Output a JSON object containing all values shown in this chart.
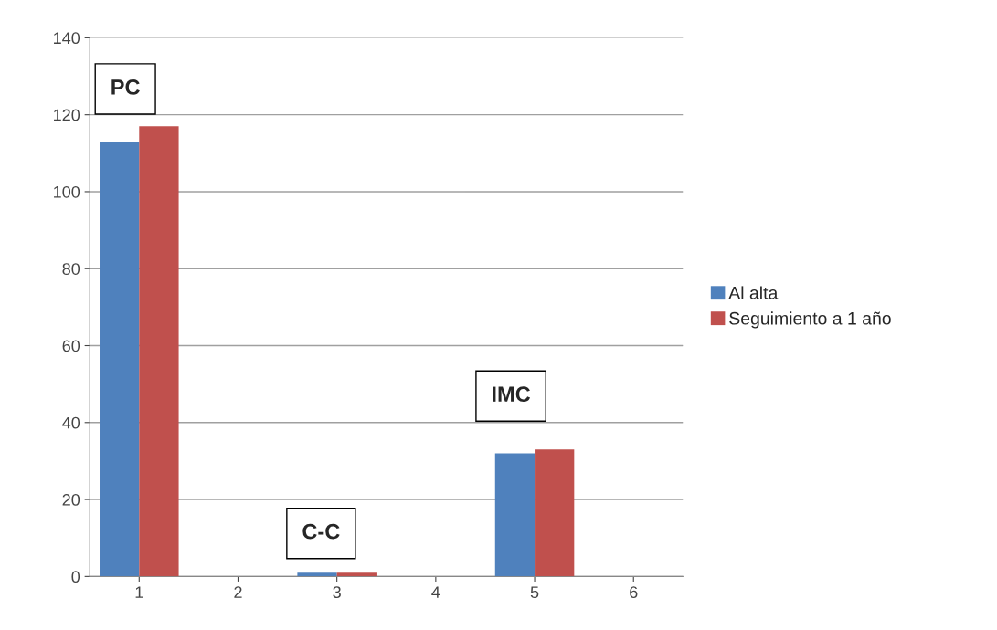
{
  "chart_data": {
    "type": "bar",
    "categories": [
      "1",
      "2",
      "3",
      "4",
      "5",
      "6"
    ],
    "series": [
      {
        "name": "Al alta",
        "color": "#4f81bd",
        "values": [
          113,
          null,
          1,
          null,
          32,
          null
        ]
      },
      {
        "name": "Seguimiento a 1 año",
        "color": "#c0504d",
        "values": [
          117,
          null,
          1,
          null,
          33,
          null
        ]
      }
    ],
    "ylim": [
      0,
      140
    ],
    "yticks": [
      0,
      20,
      40,
      60,
      80,
      100,
      120,
      140
    ],
    "grid": "y",
    "legend": "right",
    "annotations": [
      "PC",
      "C-C",
      "IMC"
    ]
  }
}
